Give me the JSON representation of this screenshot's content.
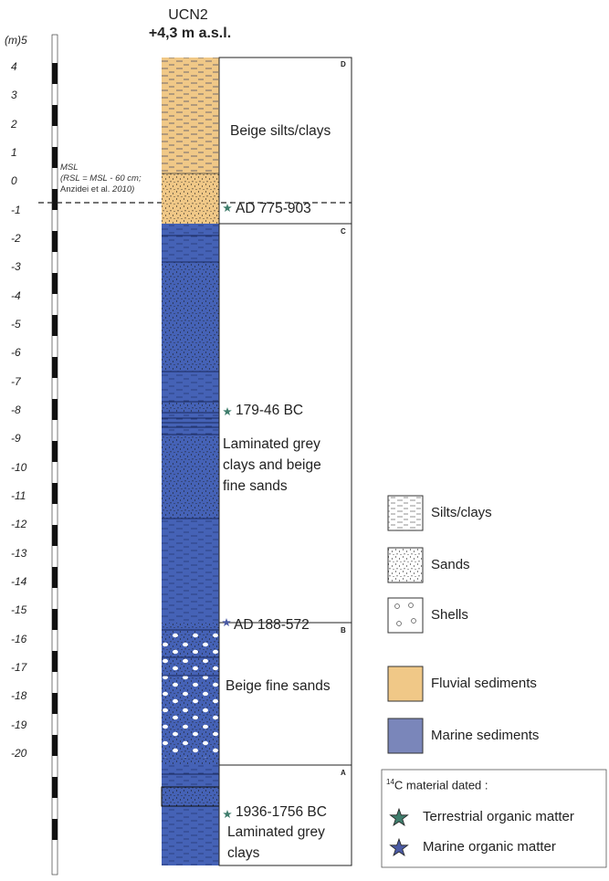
{
  "header": {
    "core_name": "UCN2",
    "elevation": "+4,3 m a.s.l."
  },
  "axis": {
    "unit_label": "(m)5",
    "ticks": [
      "4",
      "3",
      "2",
      "1",
      "0",
      "-1",
      "-2",
      "-3",
      "-4",
      "-5",
      "-6",
      "-7",
      "-8",
      "-9",
      "-10",
      "-11",
      "-12",
      "-13",
      "-14",
      "-15",
      "-16",
      "-17",
      "-18",
      "-19",
      "-20"
    ]
  },
  "msl_note": {
    "line1": "MSL",
    "line2": "(RSL = MSL - 60 cm;",
    "line3_author": "Anzidei et al.",
    "line3_year": "2010)"
  },
  "units": {
    "D": {
      "letter": "D",
      "description": "Beige silts/clays"
    },
    "C": {
      "letter": "C",
      "description_lines": [
        "Laminated grey",
        "clays and beige",
        "fine sands"
      ]
    },
    "B": {
      "letter": "B",
      "description": "Beige fine sands"
    },
    "A": {
      "letter": "A",
      "description_lines": [
        "Laminated grey",
        "clays"
      ]
    }
  },
  "dates": [
    {
      "label": "AD 775-903",
      "material": "terrestrial"
    },
    {
      "label": "179-46 BC",
      "material": "terrestrial"
    },
    {
      "label": "AD 188-572",
      "material": "marine"
    },
    {
      "label": "1936-1756 BC",
      "material": "terrestrial"
    }
  ],
  "legend": {
    "silts": "Silts/clays",
    "sands": "Sands",
    "shells": "Shells",
    "fluvial": "Fluvial sediments",
    "marine": "Marine sediments",
    "dated_title_sup": "14",
    "dated_title": "C material dated :",
    "terrestrial": "Terrestrial organic matter",
    "marine_om": "Marine organic matter"
  },
  "colors": {
    "fluvial": "#f0c887",
    "marine": "#4562b6",
    "legend_marine": "#7a86ba",
    "terrestrial_star": "#3f7d6c",
    "marine_star": "#4a5aa3"
  }
}
